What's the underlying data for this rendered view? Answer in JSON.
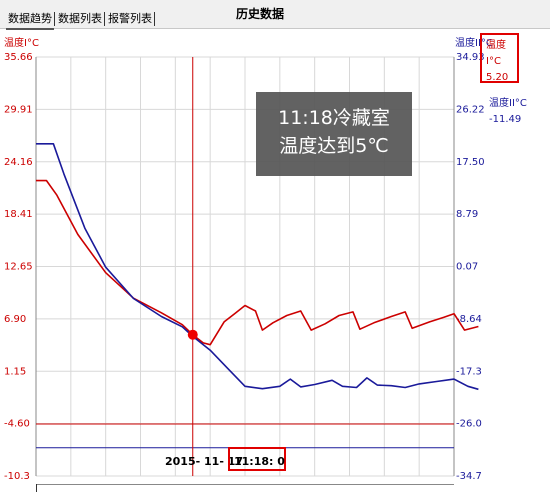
{
  "tabs": [
    {
      "label": "数据趋势",
      "active": true
    },
    {
      "label": "数据列表",
      "active": false
    },
    {
      "label": "报警列表",
      "active": false
    }
  ],
  "page_title": "历史数据",
  "readout1": {
    "label": "温度I°C",
    "value": "5.20",
    "color": "#cc0000"
  },
  "readout2": {
    "label": "温度II°C",
    "value": "-11.49",
    "color": "#1a1a9a"
  },
  "annotation": {
    "line1": "11:18冷藏室",
    "line2": "温度达到5℃"
  },
  "cursor": {
    "date": "2015- 11- 17",
    "time": "11:18: 0"
  },
  "chart_data": {
    "type": "line",
    "axis_left": {
      "label": "温度I°C",
      "color": "#cc0000",
      "ticks": [
        "35.66",
        "29.91",
        "24.16",
        "18.41",
        "12.65",
        "6.90",
        "1.15",
        "-4.60",
        "-10.3"
      ]
    },
    "axis_right": {
      "label": "温度II°C",
      "color": "#1a1a9a",
      "ticks": [
        "34.93",
        "26.22",
        "17.50",
        "8.79",
        "0.07",
        "-8.64",
        "-17.3",
        "-26.0",
        "-34.7"
      ]
    },
    "grid": true,
    "threshold_left_axis": -4.6,
    "threshold_right_axis": -30.0,
    "cursor_index": 4.5,
    "x_count": 12,
    "series": [
      {
        "axis": "left",
        "color": "#cc0000",
        "values": [
          [
            0,
            22.1
          ],
          [
            0.3,
            22.1
          ],
          [
            0.6,
            20.5
          ],
          [
            1.2,
            16.2
          ],
          [
            2.0,
            12.0
          ],
          [
            2.8,
            9.2
          ],
          [
            3.6,
            7.6
          ],
          [
            4.2,
            6.3
          ],
          [
            4.5,
            5.2
          ],
          [
            4.8,
            4.3
          ],
          [
            5.0,
            4.1
          ],
          [
            5.4,
            6.6
          ],
          [
            5.7,
            7.5
          ],
          [
            6.0,
            8.4
          ],
          [
            6.3,
            7.8
          ],
          [
            6.5,
            5.7
          ],
          [
            6.8,
            6.5
          ],
          [
            7.2,
            7.3
          ],
          [
            7.6,
            7.8
          ],
          [
            7.9,
            5.7
          ],
          [
            8.3,
            6.4
          ],
          [
            8.7,
            7.3
          ],
          [
            9.1,
            7.7
          ],
          [
            9.3,
            5.8
          ],
          [
            9.7,
            6.5
          ],
          [
            10.2,
            7.2
          ],
          [
            10.6,
            7.7
          ],
          [
            10.8,
            5.9
          ],
          [
            11.3,
            6.6
          ],
          [
            11.7,
            7.1
          ],
          [
            12.0,
            7.5
          ],
          [
            12.3,
            5.7
          ],
          [
            12.7,
            6.1
          ]
        ]
      },
      {
        "axis": "right",
        "color": "#1a1a9a",
        "values": [
          [
            0,
            20.5
          ],
          [
            0.5,
            20.5
          ],
          [
            0.8,
            15.5
          ],
          [
            1.4,
            6.5
          ],
          [
            2.0,
            0.0
          ],
          [
            2.8,
            -5.2
          ],
          [
            3.6,
            -8.2
          ],
          [
            4.2,
            -9.9
          ],
          [
            4.5,
            -11.5
          ],
          [
            5.0,
            -13.8
          ],
          [
            5.5,
            -16.8
          ],
          [
            6.0,
            -19.8
          ],
          [
            6.5,
            -20.2
          ],
          [
            7.0,
            -19.8
          ],
          [
            7.3,
            -18.6
          ],
          [
            7.6,
            -19.9
          ],
          [
            8.0,
            -19.5
          ],
          [
            8.5,
            -18.8
          ],
          [
            8.8,
            -19.8
          ],
          [
            9.2,
            -20.0
          ],
          [
            9.5,
            -18.4
          ],
          [
            9.8,
            -19.6
          ],
          [
            10.2,
            -19.7
          ],
          [
            10.6,
            -20.0
          ],
          [
            11.0,
            -19.4
          ],
          [
            11.5,
            -19.0
          ],
          [
            12.0,
            -18.6
          ],
          [
            12.4,
            -19.8
          ],
          [
            12.7,
            -20.3
          ]
        ]
      }
    ]
  }
}
